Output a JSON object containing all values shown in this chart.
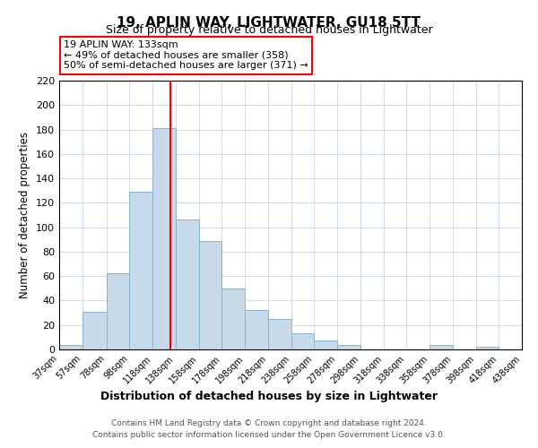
{
  "title": "19, APLIN WAY, LIGHTWATER, GU18 5TT",
  "subtitle": "Size of property relative to detached houses in Lightwater",
  "xlabel": "Distribution of detached houses by size in Lightwater",
  "ylabel": "Number of detached properties",
  "bar_color": "#c8d9ea",
  "bar_edge_color": "#8ab4cc",
  "grid_color": "#d0dce8",
  "vline_x": 133,
  "vline_color": "red",
  "annotation_title": "19 APLIN WAY: 133sqm",
  "annotation_line1": "← 49% of detached houses are smaller (358)",
  "annotation_line2": "50% of semi-detached houses are larger (371) →",
  "annotation_box_color": "white",
  "annotation_box_edge": "red",
  "bin_edges": [
    37,
    57,
    78,
    98,
    118,
    138,
    158,
    178,
    198,
    218,
    238,
    258,
    278,
    298,
    318,
    338,
    358,
    378,
    398,
    418,
    438
  ],
  "bin_counts": [
    4,
    31,
    62,
    129,
    181,
    106,
    89,
    50,
    32,
    25,
    13,
    7,
    4,
    0,
    0,
    0,
    4,
    0,
    2,
    0
  ],
  "ylim": [
    0,
    220
  ],
  "yticks": [
    0,
    20,
    40,
    60,
    80,
    100,
    120,
    140,
    160,
    180,
    200,
    220
  ],
  "xtick_labels": [
    "37sqm",
    "57sqm",
    "78sqm",
    "98sqm",
    "118sqm",
    "138sqm",
    "158sqm",
    "178sqm",
    "198sqm",
    "218sqm",
    "238sqm",
    "258sqm",
    "278sqm",
    "298sqm",
    "318sqm",
    "338sqm",
    "358sqm",
    "378sqm",
    "398sqm",
    "418sqm",
    "438sqm"
  ],
  "footer1": "Contains HM Land Registry data © Crown copyright and database right 2024.",
  "footer2": "Contains public sector information licensed under the Open Government Licence v3.0."
}
